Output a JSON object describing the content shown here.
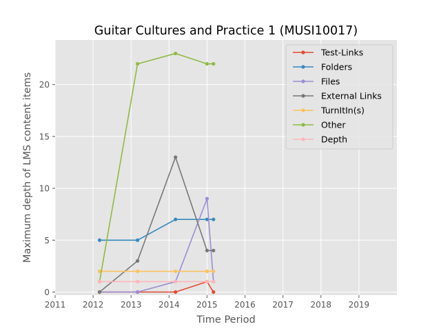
{
  "chart_data": {
    "type": "line",
    "title": "Guitar Cultures and Practice 1 (MUSI10017)",
    "xlabel": "Time Period",
    "ylabel": "Maximum depth of LMS content items",
    "xlim": [
      2011,
      2020
    ],
    "ylim": [
      -0.3,
      24.3
    ],
    "x_ticks": [
      2011,
      2012,
      2013,
      2014,
      2015,
      2016,
      2017,
      2018,
      2019
    ],
    "y_ticks": [
      0,
      5,
      10,
      15,
      20
    ],
    "grid": true,
    "legend_position": "upper right",
    "x": [
      2012.17,
      2013.17,
      2014.17,
      2015.0,
      2015.17
    ],
    "series": [
      {
        "name": "Test-Links",
        "color": "#e24a33",
        "values": [
          0,
          0,
          0,
          1,
          0
        ]
      },
      {
        "name": "Folders",
        "color": "#348abd",
        "values": [
          5,
          5,
          7,
          7,
          7
        ]
      },
      {
        "name": "Files",
        "color": "#988ed5",
        "values": [
          0,
          0,
          1,
          9,
          1
        ]
      },
      {
        "name": "External Links",
        "color": "#777777",
        "values": [
          0,
          3,
          13,
          4,
          4
        ]
      },
      {
        "name": "TurnItIn(s)",
        "color": "#fbc15e",
        "values": [
          2,
          2,
          2,
          2,
          2
        ]
      },
      {
        "name": "Other",
        "color": "#8eba42",
        "values": [
          1,
          22,
          23,
          22,
          22
        ]
      },
      {
        "name": "Depth",
        "color": "#ffb5b8",
        "values": [
          1,
          1,
          1,
          1,
          1
        ]
      }
    ]
  }
}
